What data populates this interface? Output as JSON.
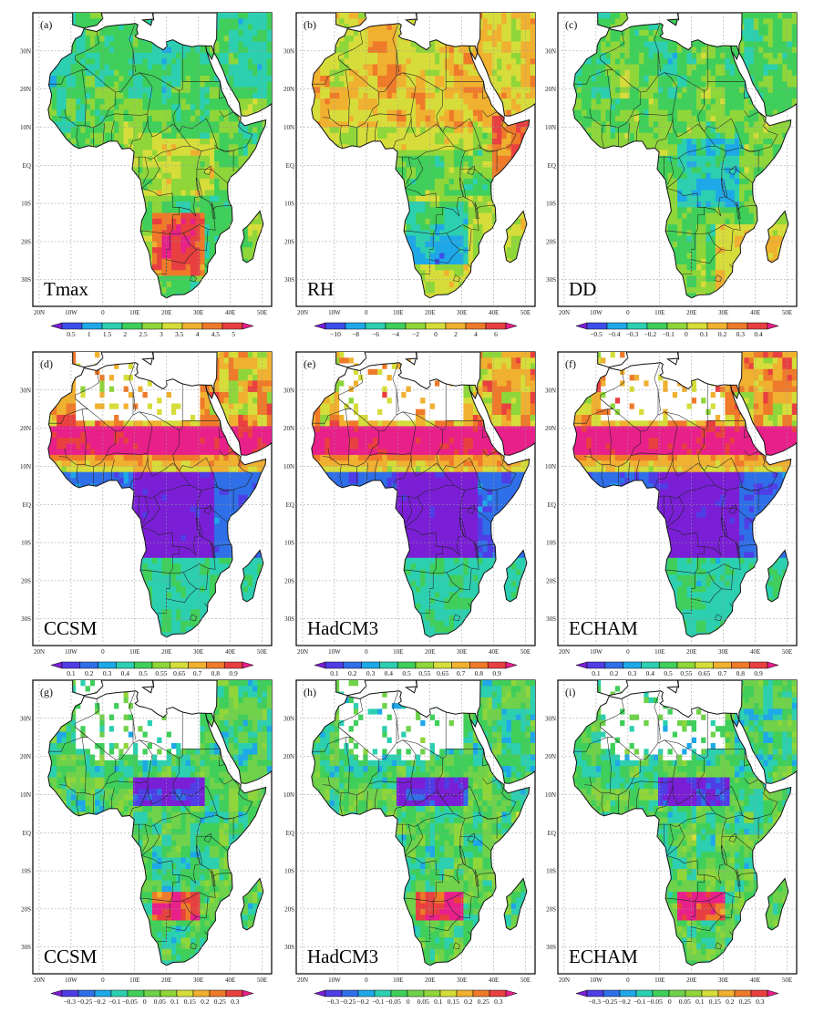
{
  "figure": {
    "axes": {
      "lat_labels": [
        "30N",
        "20N",
        "10N",
        "EQ",
        "10S",
        "20S",
        "30S"
      ],
      "lon_labels": [
        "20N",
        "10W",
        "0",
        "10E",
        "20E",
        "30E",
        "40E",
        "50E"
      ]
    },
    "colors": {
      "tmax": [
        "#7a1fd6",
        "#3d4fe8",
        "#1ea8e8",
        "#2ccfb0",
        "#3fcf5a",
        "#8fd63a",
        "#d6dd3a",
        "#f0b030",
        "#ee7a2a",
        "#e84040",
        "#e8208a"
      ],
      "rh": [
        "#7a1fd6",
        "#3d4fe8",
        "#1ea8e8",
        "#2ccfb0",
        "#3fcf5a",
        "#8fd63a",
        "#d6dd3a",
        "#f0b030",
        "#ee7a2a",
        "#e84040",
        "#e8208a"
      ],
      "dd": [
        "#7a1fd6",
        "#3d4fe8",
        "#1ea8e8",
        "#2ccfb0",
        "#3fcf5a",
        "#8fd63a",
        "#d6dd3a",
        "#f0b030",
        "#ee7a2a",
        "#e84040",
        "#e8208a"
      ],
      "corr": [
        "#7a1fd6",
        "#4f3ee6",
        "#2f6fe8",
        "#1ea8e8",
        "#2ccfb0",
        "#3fcf5a",
        "#8fd63a",
        "#d6dd3a",
        "#f0b030",
        "#ee7a2a",
        "#e84040",
        "#e8208a"
      ],
      "diff": [
        "#7a1fd6",
        "#4f3ee6",
        "#2f6fe8",
        "#1ea8e8",
        "#2ccfb0",
        "#3fcf5a",
        "#6fd24a",
        "#8fd63a",
        "#d6dd3a",
        "#f0b030",
        "#ee7a2a",
        "#e84040",
        "#e8208a"
      ]
    },
    "colorbars": {
      "tmax": [
        "0.5",
        "1",
        "1.5",
        "2",
        "2.5",
        "3",
        "3.5",
        "4",
        "4.5",
        "5"
      ],
      "rh": [
        "−10",
        "−8",
        "−6",
        "−4",
        "−2",
        "0",
        "2",
        "4",
        "6"
      ],
      "dd": [
        "−0.5",
        "−0.4",
        "−0.3",
        "−0.2",
        "−0.1",
        "0",
        "0.1",
        "0.2",
        "0.3",
        "0.4"
      ],
      "corr": [
        "0.1",
        "0.2",
        "0.3",
        "0.4",
        "0.5",
        "0.55",
        "0.65",
        "0.7",
        "0.8",
        "0.9"
      ],
      "diff": [
        "−0.3",
        "−0.25",
        "−0.2",
        "−0.1",
        "−0.05",
        "0",
        "0.05",
        "0.1",
        "0.15",
        "0.2",
        "0.25",
        "0.3"
      ]
    },
    "panels": [
      {
        "label": "(a)",
        "variable": "Tmax",
        "colorbar": "tmax",
        "pattern": "tmax"
      },
      {
        "label": "(b)",
        "variable": "RH",
        "colorbar": "rh",
        "pattern": "rh"
      },
      {
        "label": "(c)",
        "variable": "DD",
        "colorbar": "dd",
        "pattern": "dd"
      },
      {
        "label": "(d)",
        "variable": "CCSM",
        "colorbar": "corr",
        "pattern": "corr"
      },
      {
        "label": "(e)",
        "variable": "HadCM3",
        "colorbar": "corr",
        "pattern": "corr"
      },
      {
        "label": "(f)",
        "variable": "ECHAM",
        "colorbar": "corr",
        "pattern": "corr"
      },
      {
        "label": "(g)",
        "variable": "CCSM",
        "colorbar": "diff",
        "pattern": "diff"
      },
      {
        "label": "(h)",
        "variable": "HadCM3",
        "colorbar": "diff",
        "pattern": "diff"
      },
      {
        "label": "(i)",
        "variable": "ECHAM",
        "colorbar": "diff",
        "pattern": "diff"
      }
    ]
  }
}
